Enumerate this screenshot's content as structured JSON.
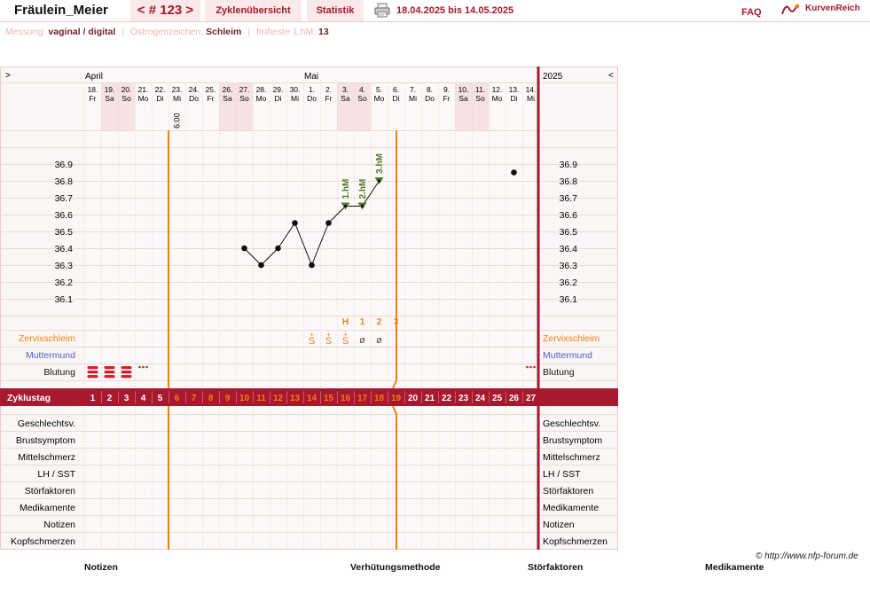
{
  "header": {
    "user_name": "Fräulein_Meier",
    "cycle_nav": "< # 123 >",
    "tab_overview": "Zyklenübersicht",
    "tab_stats": "Statistik",
    "date_range": "18.04.2025 bis 14.05.2025",
    "faq": "FAQ",
    "brand": "KurvenReich"
  },
  "info": {
    "messung_label": "Messung:",
    "messung_value": "vaginal / digital",
    "oestrogen_label": "Östrogenzeichen:",
    "oestrogen_value": "Schleim",
    "hm_label": "früheste 1.hM:",
    "hm_value": "13"
  },
  "chart": {
    "nav_left": ">",
    "nav_right": "<",
    "year": "2025",
    "months": [
      {
        "label": "April",
        "day_index": 0
      },
      {
        "label": "Mai",
        "day_index": 13
      }
    ],
    "days": [
      {
        "d": "18.",
        "w": "Fr",
        "we": false
      },
      {
        "d": "19.",
        "w": "Sa",
        "we": true
      },
      {
        "d": "20.",
        "w": "So",
        "we": true
      },
      {
        "d": "21.",
        "w": "Mo",
        "we": false
      },
      {
        "d": "22.",
        "w": "Di",
        "we": false
      },
      {
        "d": "23.",
        "w": "Mi",
        "we": false
      },
      {
        "d": "24.",
        "w": "Do",
        "we": false
      },
      {
        "d": "25.",
        "w": "Fr",
        "we": false
      },
      {
        "d": "26.",
        "w": "Sa",
        "we": true
      },
      {
        "d": "27.",
        "w": "So",
        "we": true
      },
      {
        "d": "28.",
        "w": "Mo",
        "we": false
      },
      {
        "d": "29.",
        "w": "Di",
        "we": false
      },
      {
        "d": "30.",
        "w": "Mi",
        "we": false
      },
      {
        "d": "1.",
        "w": "Do",
        "we": false
      },
      {
        "d": "2.",
        "w": "Fr",
        "we": false
      },
      {
        "d": "3.",
        "w": "Sa",
        "we": true
      },
      {
        "d": "4.",
        "w": "So",
        "we": true
      },
      {
        "d": "5.",
        "w": "Mo",
        "we": false
      },
      {
        "d": "6.",
        "w": "Di",
        "we": false
      },
      {
        "d": "7.",
        "w": "Mi",
        "we": false
      },
      {
        "d": "8.",
        "w": "Do",
        "we": false
      },
      {
        "d": "9.",
        "w": "Fr",
        "we": false
      },
      {
        "d": "10.",
        "w": "Sa",
        "we": true
      },
      {
        "d": "11.",
        "w": "So",
        "we": true
      },
      {
        "d": "12.",
        "w": "Mo",
        "we": false
      },
      {
        "d": "13.",
        "w": "Di",
        "we": false
      },
      {
        "d": "14.",
        "w": "Mi",
        "we": false
      }
    ],
    "time_note": {
      "day_index": 5,
      "text": "6:00"
    },
    "temp_ticks": [
      "36.9",
      "36.8",
      "36.7",
      "36.6",
      "36.5",
      "36.4",
      "36.3",
      "36.2",
      "36.1"
    ],
    "hm_labels": [
      {
        "day_index": 15,
        "text": "1.hM"
      },
      {
        "day_index": 16,
        "text": "2.hM"
      },
      {
        "day_index": 17,
        "text": "3.hM"
      }
    ],
    "peak_labels": [
      {
        "day_index": 15,
        "text": "H"
      },
      {
        "day_index": 16,
        "text": "1"
      },
      {
        "day_index": 17,
        "text": "2"
      },
      {
        "day_index": 18,
        "text": "3"
      }
    ],
    "mucus": [
      {
        "day_index": 13,
        "text": "S+"
      },
      {
        "day_index": 14,
        "text": "S+"
      },
      {
        "day_index": 15,
        "text": "S+"
      },
      {
        "day_index": 16,
        "text": "ø"
      },
      {
        "day_index": 17,
        "text": "ø"
      }
    ],
    "bleeding": {
      "heavy_days": [
        0,
        1,
        2
      ],
      "spotting_days": [
        3,
        26
      ]
    },
    "left_row_labels": {
      "zervix": "Zervixschleim",
      "muttermund": "Muttermund",
      "blutung": "Blutung"
    },
    "right_row_labels": {
      "zervix": "Zervixschleim",
      "muttermund": "Muttermund",
      "blutung": "Blutung"
    },
    "zyklustag_label": "Zyklustag",
    "cycle_days": [
      "1",
      "2",
      "3",
      "4",
      "5",
      "6",
      "7",
      "8",
      "9",
      "10",
      "11",
      "12",
      "13",
      "14",
      "15",
      "16",
      "17",
      "18",
      "19",
      "20",
      "21",
      "22",
      "23",
      "24",
      "25",
      "26",
      "27"
    ],
    "lower_rows": [
      "Geschlechtsv.",
      "Brustsymptom",
      "Mittelschmerz",
      "LH / SST",
      "Störfaktoren",
      "Medikamente",
      "Notizen",
      "Kopfschmerzen"
    ],
    "colors": {
      "accent": "#a6192e",
      "orange": "#f08010",
      "green": "#4f7d28",
      "muttermund": "#4a62c8",
      "grid": "#eadada",
      "weekend": "#f6e2e5"
    }
  },
  "chart_data": {
    "type": "line",
    "x": [
      "27.04.",
      "28.04.",
      "29.04.",
      "30.04.",
      "01.05.",
      "02.05.",
      "03.05.",
      "04.05.",
      "05.05.",
      "13.05."
    ],
    "series": [
      {
        "values": [
          36.4,
          36.3,
          36.4,
          36.55,
          36.3,
          36.55,
          36.65,
          36.65,
          36.8,
          36.85
        ]
      }
    ],
    "ylim": [
      36.0,
      37.0
    ],
    "connected_until_index": 8,
    "grid": true
  },
  "footer": {
    "copyright": "© http://www.nfp-forum.de",
    "col1": "Notizen",
    "col2": "Verhütungsmethode",
    "col3": "Störfaktoren",
    "col4": "Medikamente"
  }
}
